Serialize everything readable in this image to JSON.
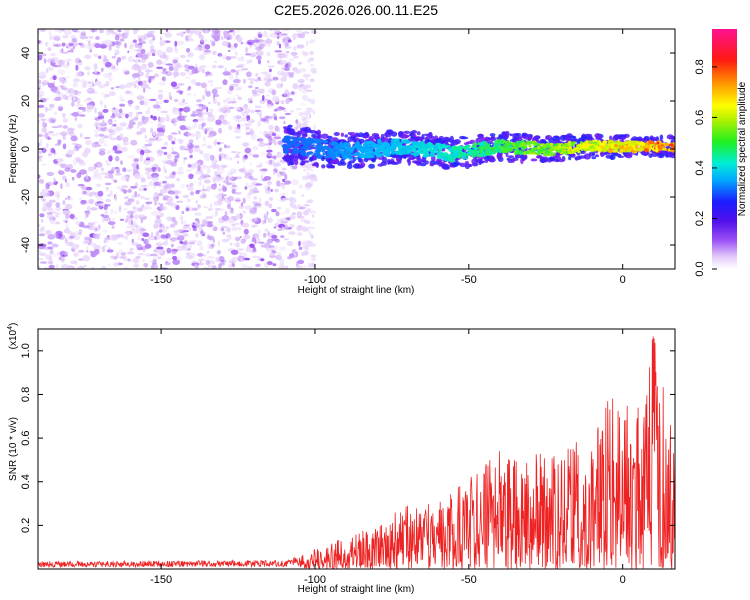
{
  "title": "C2E5.2026.026.00.11.E25",
  "chart_data": [
    {
      "type": "heatmap",
      "name": "spectrogram",
      "xlabel": "Height of straight line (km)",
      "ylabel": "Frequency (Hz)",
      "xlim": [
        -190,
        17
      ],
      "ylim": [
        -50,
        50
      ],
      "xticks": [
        -150,
        -100,
        -50,
        0
      ],
      "yticks": [
        -40,
        -20,
        0,
        20,
        40
      ],
      "xtick_labels": [
        "-150",
        "-100",
        "-50",
        "0"
      ],
      "ytick_labels": [
        "-40",
        "-20",
        "0",
        "20",
        "40"
      ],
      "colorbar": {
        "label": "Normalized spectral amplitude",
        "range": [
          0,
          0.95
        ],
        "ticks": [
          0,
          0.2,
          0.4,
          0.6,
          0.8
        ],
        "tick_labels": [
          "0.0",
          "0.2",
          "0.4",
          "0.6",
          "0.8"
        ],
        "colormap": [
          "#ffffff",
          "#d8b8f8",
          "#7a1cf0",
          "#2020ff",
          "#00b4ff",
          "#00e8d0",
          "#30f030",
          "#b8f000",
          "#ffff00",
          "#ff9000",
          "#ff1010",
          "#ff1090"
        ]
      },
      "regions": [
        {
          "description": "broadband noise",
          "x_range": [
            -190,
            -104
          ],
          "freq_range": [
            -50,
            50
          ],
          "amplitude": [
            0.0,
            0.12
          ]
        },
        {
          "description": "meteor echo trail",
          "x_range": [
            -110,
            17
          ],
          "center_freq_hz": [
            [
              -110,
              2
            ],
            [
              -90,
              -1
            ],
            [
              -70,
              1
            ],
            [
              -55,
              -2
            ],
            [
              -40,
              1
            ],
            [
              -25,
              0
            ],
            [
              -10,
              1
            ],
            [
              0,
              1
            ],
            [
              17,
              1
            ]
          ],
          "width_hz": [
            8,
            4
          ],
          "amplitude": [
            0.3,
            0.9
          ]
        }
      ]
    },
    {
      "type": "line",
      "name": "snr",
      "xlabel": "Height of straight line (km)",
      "ylabel": "SNR (10 * v/v)",
      "y_multiplier": "(x10",
      "y_multiplier_exp": "4",
      "y_multiplier_close": ")",
      "xlim": [
        -190,
        17
      ],
      "ylim": [
        0,
        1.1
      ],
      "xticks": [
        -150,
        -100,
        -50,
        0
      ],
      "yticks": [
        0.2,
        0.4,
        0.6,
        0.8,
        1.0
      ],
      "xtick_labels": [
        "-150",
        "-100",
        "-50",
        "0"
      ],
      "ytick_labels": [
        "0.2",
        "0.4",
        "0.6",
        "0.8",
        "1.0"
      ],
      "color": "#ee2222",
      "envelope": [
        {
          "x": -190,
          "peak": 0.035
        },
        {
          "x": -110,
          "peak": 0.04
        },
        {
          "x": -105,
          "peak": 0.06
        },
        {
          "x": -100,
          "peak": 0.1
        },
        {
          "x": -90,
          "peak": 0.15
        },
        {
          "x": -80,
          "peak": 0.2
        },
        {
          "x": -70,
          "peak": 0.3
        },
        {
          "x": -60,
          "peak": 0.32
        },
        {
          "x": -50,
          "peak": 0.42
        },
        {
          "x": -40,
          "peak": 0.55
        },
        {
          "x": -30,
          "peak": 0.52
        },
        {
          "x": -20,
          "peak": 0.55
        },
        {
          "x": -10,
          "peak": 0.62
        },
        {
          "x": -5,
          "peak": 0.8
        },
        {
          "x": 0,
          "peak": 0.75
        },
        {
          "x": 5,
          "peak": 0.85
        },
        {
          "x": 10,
          "peak": 1.07
        },
        {
          "x": 17,
          "peak": 0.6
        }
      ]
    }
  ]
}
